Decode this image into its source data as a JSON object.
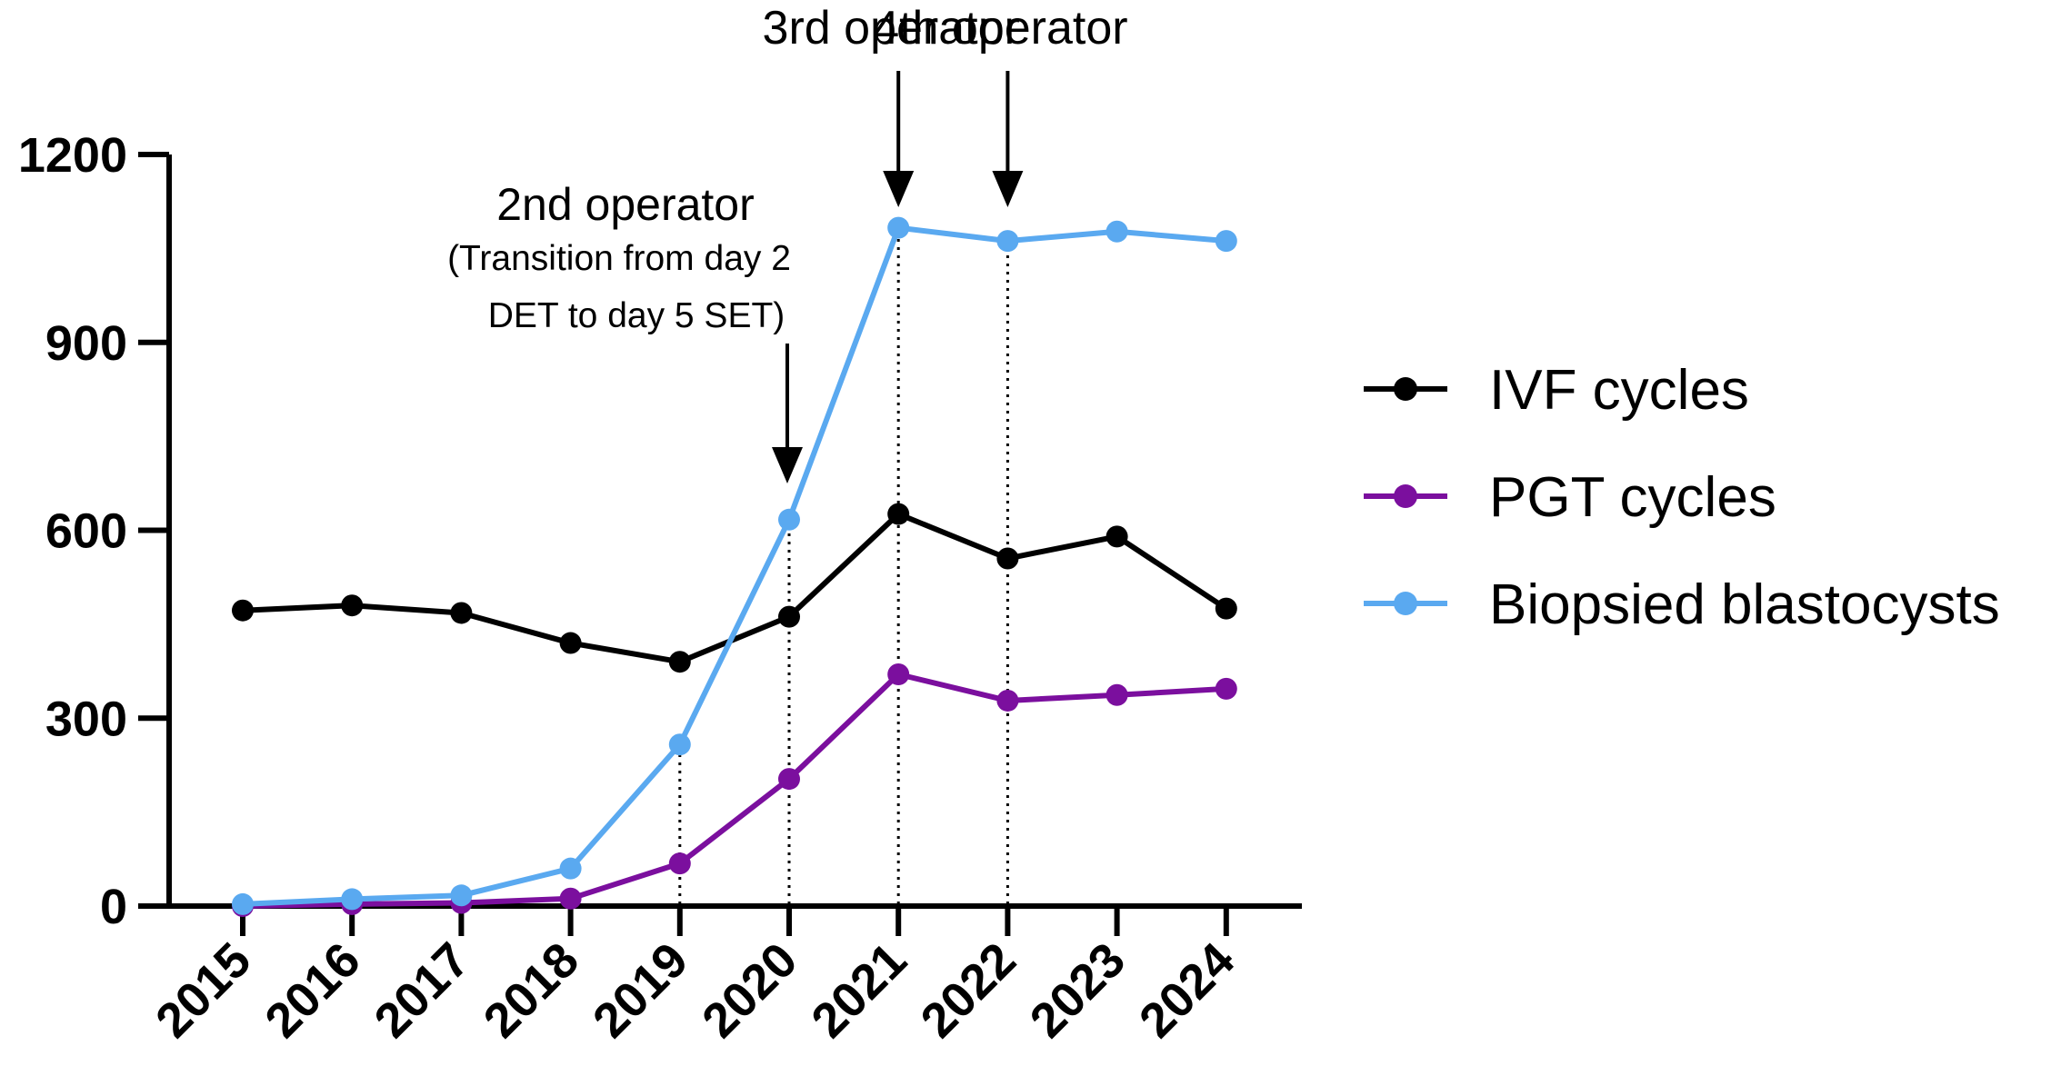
{
  "chart_data": {
    "type": "line",
    "title": "",
    "xlabel": "",
    "ylabel": "",
    "categories": [
      "2015",
      "2016",
      "2017",
      "2018",
      "2019",
      "2020",
      "2021",
      "2022",
      "2023",
      "2024"
    ],
    "ylim": [
      0,
      1200
    ],
    "yticks": [
      0,
      300,
      600,
      900,
      1200
    ],
    "grid": false,
    "legend_position": "right",
    "series": [
      {
        "name": "IVF cycles",
        "color": "#000000",
        "values": [
          472,
          480,
          468,
          420,
          390,
          462,
          626,
          555,
          590,
          475
        ]
      },
      {
        "name": "PGT cycles",
        "color": "#7b0f9e",
        "values": [
          0,
          3,
          5,
          12,
          68,
          203,
          370,
          328,
          337,
          347
        ]
      },
      {
        "name": "Biopsied blastocysts",
        "color": "#5aa9f0",
        "values": [
          3,
          11,
          17,
          60,
          258,
          617,
          1083,
          1062,
          1077,
          1062
        ]
      }
    ],
    "dotted_markers": [
      "2019",
      "2020",
      "2021",
      "2022"
    ],
    "annotations": [
      {
        "target": "2020",
        "lines": [
          "2nd operator",
          "(Transition from day 2",
          "DET to day 5 SET)"
        ]
      },
      {
        "target": "2021",
        "lines": [
          "3rd operator"
        ]
      },
      {
        "target": "2022",
        "lines": [
          "4th operator"
        ]
      }
    ]
  }
}
